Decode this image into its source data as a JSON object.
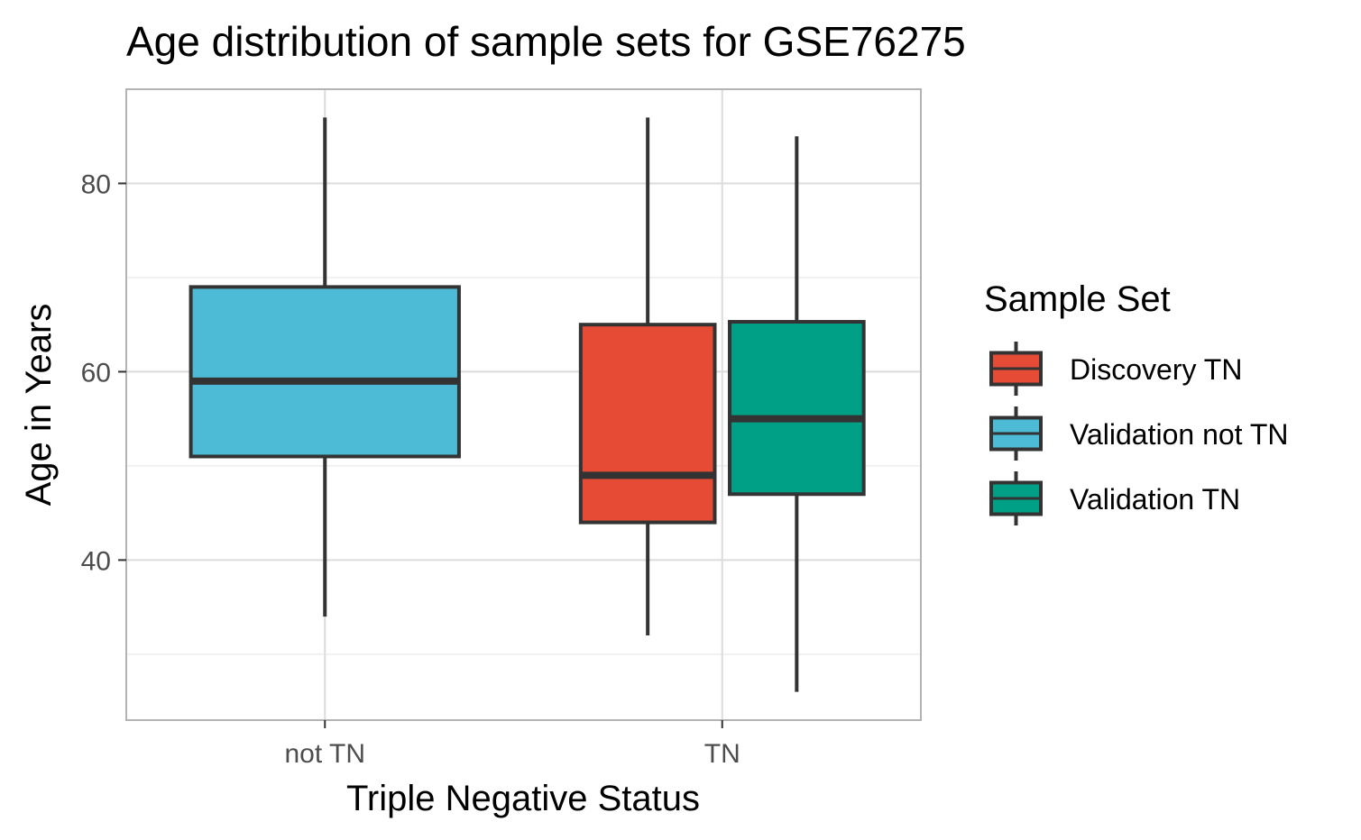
{
  "chart_data": {
    "type": "boxplot",
    "title": "Age distribution of sample sets for GSE76275",
    "xlabel": "Triple Negative Status",
    "ylabel": "Age in Years",
    "categories": [
      "not TN",
      "TN"
    ],
    "ylim": [
      23,
      90
    ],
    "yticks": [
      40,
      60,
      80
    ],
    "grid": true,
    "legend": {
      "title": "Sample Set",
      "placement": "right",
      "entries": [
        "Discovery TN",
        "Validation not TN",
        "Validation TN"
      ]
    },
    "series": [
      {
        "name": "Discovery TN",
        "color": "#E64B35",
        "category": "TN",
        "slot": 0,
        "slots": 2,
        "min": 32,
        "q1": 44,
        "median": 49,
        "q3": 65,
        "max": 87
      },
      {
        "name": "Validation not TN",
        "color": "#4DBBD5",
        "category": "not TN",
        "slot": 0,
        "slots": 1,
        "min": 34,
        "q1": 51,
        "median": 59,
        "q3": 69,
        "max": 87
      },
      {
        "name": "Validation TN",
        "color": "#00A087",
        "category": "TN",
        "slot": 1,
        "slots": 2,
        "min": 26,
        "q1": 47,
        "median": 55,
        "q3": 65.3,
        "max": 85
      }
    ]
  }
}
